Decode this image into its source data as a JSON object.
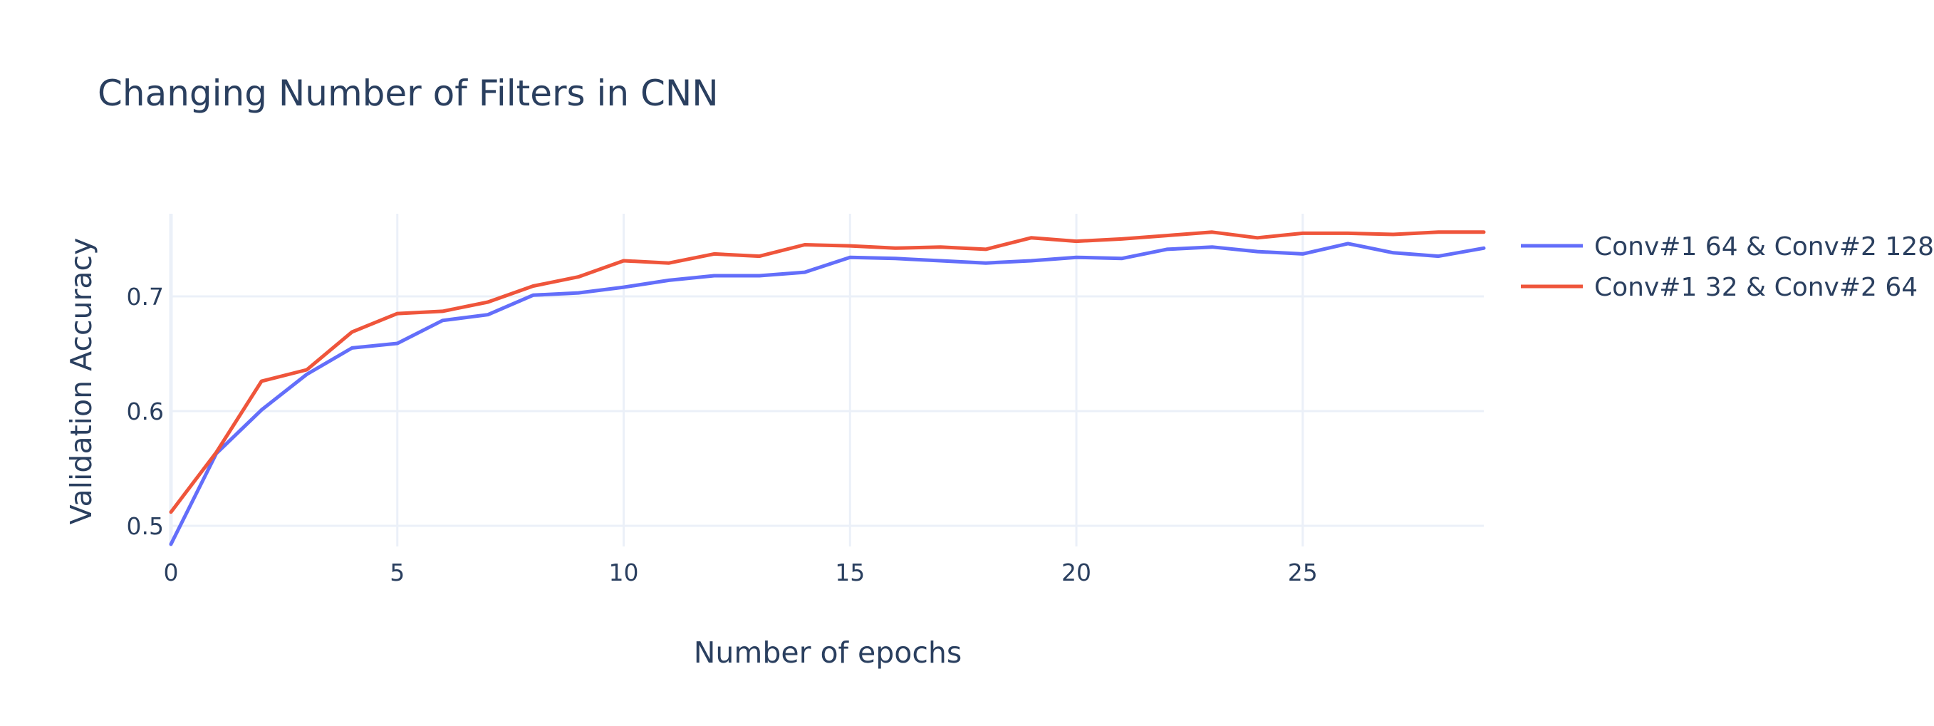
{
  "chart_data": {
    "type": "line",
    "title": "Changing Number of Filters in CNN",
    "xlabel": "Number of epochs",
    "ylabel": "Validation Accuracy",
    "xlim": [
      0,
      29
    ],
    "ylim": [
      0.482,
      0.772
    ],
    "x_ticks": [
      "0",
      "5",
      "10",
      "15",
      "20",
      "25"
    ],
    "y_ticks": [
      "0.5",
      "0.6",
      "0.7"
    ],
    "grid": true,
    "legend_position": "top-right",
    "x": [
      0,
      1,
      2,
      3,
      4,
      5,
      6,
      7,
      8,
      9,
      10,
      11,
      12,
      13,
      14,
      15,
      16,
      17,
      18,
      19,
      20,
      21,
      22,
      23,
      24,
      25,
      26,
      27,
      28,
      29
    ],
    "series": [
      {
        "name": "Conv#1 64 & Conv#2 128",
        "color": "#636efa",
        "values": [
          0.484,
          0.563,
          0.601,
          0.632,
          0.655,
          0.659,
          0.679,
          0.684,
          0.701,
          0.703,
          0.708,
          0.714,
          0.718,
          0.718,
          0.721,
          0.734,
          0.733,
          0.731,
          0.729,
          0.731,
          0.734,
          0.733,
          0.741,
          0.743,
          0.739,
          0.737,
          0.746,
          0.738,
          0.735,
          0.742
        ]
      },
      {
        "name": "Conv#1 32 & Conv#2 64",
        "color": "#ef553b",
        "values": [
          0.512,
          0.564,
          0.626,
          0.636,
          0.669,
          0.685,
          0.687,
          0.695,
          0.709,
          0.717,
          0.731,
          0.729,
          0.737,
          0.735,
          0.745,
          0.744,
          0.742,
          0.743,
          0.741,
          0.751,
          0.748,
          0.75,
          0.753,
          0.756,
          0.751,
          0.755,
          0.755,
          0.754,
          0.756,
          0.756
        ]
      }
    ]
  }
}
